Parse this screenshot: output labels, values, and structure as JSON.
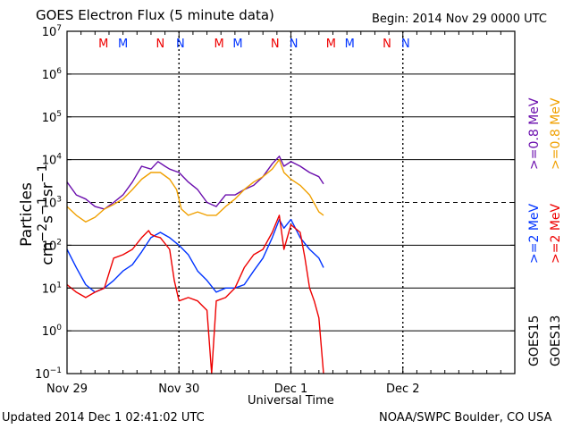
{
  "title": "GOES Electron Flux (5 minute data)",
  "begin_label": "Begin: 2014 Nov 29 0000 UTC",
  "updated_label": "Updated 2014 Dec  1 02:41:02 UTC",
  "credit_label": "NOAA/SWPC Boulder, CO USA",
  "colors": {
    "goes15_high": "#6a0dad",
    "goes13_high": "#f0a000",
    "goes15_low": "#0033ff",
    "goes13_low": "#ee0000"
  },
  "chart_data": {
    "type": "line",
    "title": "GOES Electron Flux (5 minute data)",
    "xlabel": "Universal Time",
    "ylabel": "Particles cm^-2 s^-1 sr^-1",
    "y_scale": "log",
    "ylim": [
      0.1,
      10000000
    ],
    "xlim_hours": [
      0,
      96
    ],
    "x_ticks": [
      {
        "hour": 0,
        "label": "Nov 29"
      },
      {
        "hour": 24,
        "label": "Nov 30"
      },
      {
        "hour": 48,
        "label": "Dec 1"
      },
      {
        "hour": 72,
        "label": "Dec 2"
      }
    ],
    "y_ticks": [
      {
        "exp": -1,
        "label": "10^-1"
      },
      {
        "exp": 0,
        "label": "10^0"
      },
      {
        "exp": 1,
        "label": "10^1"
      },
      {
        "exp": 2,
        "label": "10^2"
      },
      {
        "exp": 3,
        "label": "10^3"
      },
      {
        "exp": 4,
        "label": "10^4"
      },
      {
        "exp": 5,
        "label": "10^5"
      },
      {
        "exp": 6,
        "label": "10^6"
      },
      {
        "exp": 7,
        "label": "10^7"
      }
    ],
    "threshold": {
      "value": 1000,
      "style": "dashed"
    },
    "legend": [
      {
        "text": ">=0.8 MeV",
        "group": 0,
        "series": "GOES15 >=0.8 MeV"
      },
      {
        "text": ">=0.8 MeV",
        "group": 1,
        "series": "GOES13 >=0.8 MeV"
      },
      {
        "text": ">=2 MeV",
        "group": 0,
        "series": "GOES15 >=2 MeV"
      },
      {
        "text": ">=2 MeV",
        "group": 1,
        "series": "GOES13 >=2 MeV"
      },
      {
        "text": "GOES15",
        "group": 0
      },
      {
        "text": "GOES13",
        "group": 1
      }
    ],
    "markers": [
      {
        "hour": 7.8,
        "label": "M",
        "color": "#ee0000"
      },
      {
        "hour": 12.0,
        "label": "M",
        "color": "#0033ff"
      },
      {
        "hour": 20.0,
        "label": "N",
        "color": "#ee0000"
      },
      {
        "hour": 24.3,
        "label": "N",
        "color": "#0033ff"
      },
      {
        "hour": 32.6,
        "label": "M",
        "color": "#ee0000"
      },
      {
        "hour": 36.6,
        "label": "M",
        "color": "#0033ff"
      },
      {
        "hour": 44.6,
        "label": "N",
        "color": "#ee0000"
      },
      {
        "hour": 48.6,
        "label": "N",
        "color": "#0033ff"
      },
      {
        "hour": 56.6,
        "label": "M",
        "color": "#ee0000"
      },
      {
        "hour": 60.6,
        "label": "M",
        "color": "#0033ff"
      },
      {
        "hour": 68.6,
        "label": "N",
        "color": "#ee0000"
      },
      {
        "hour": 72.6,
        "label": "N",
        "color": "#0033ff"
      }
    ],
    "series": [
      {
        "name": "GOES15 >=0.8 MeV",
        "color": "#6a0dad",
        "x": [
          0,
          2,
          4,
          6,
          8,
          10,
          12,
          14,
          16,
          18,
          19.5,
          21,
          22,
          24,
          26,
          28,
          30,
          32,
          34,
          36,
          38,
          40,
          42,
          44,
          45.5,
          46.5,
          48,
          50,
          52,
          54,
          55
        ],
        "y": [
          3000,
          1500,
          1200,
          800,
          700,
          1000,
          1500,
          3000,
          7000,
          6000,
          9000,
          7000,
          6000,
          5000,
          3000,
          2000,
          1000,
          800,
          1500,
          1500,
          2000,
          2500,
          4000,
          8000,
          12000,
          7000,
          9000,
          7000,
          5000,
          4000,
          2700
        ]
      },
      {
        "name": "GOES13 >=0.8 MeV",
        "color": "#f0a000",
        "x": [
          0,
          2,
          4,
          6,
          8,
          10,
          12,
          14,
          16,
          18,
          20,
          22,
          23.5,
          24.5,
          26,
          28,
          30,
          32,
          34,
          36,
          38,
          40,
          42,
          44,
          45.5,
          46.5,
          48,
          50,
          52,
          54,
          55
        ],
        "y": [
          800,
          500,
          350,
          450,
          700,
          900,
          1200,
          2000,
          3500,
          5000,
          5000,
          3500,
          2000,
          700,
          500,
          600,
          500,
          500,
          800,
          1200,
          2000,
          3000,
          4000,
          6000,
          10000,
          5000,
          3500,
          2500,
          1500,
          600,
          500
        ]
      },
      {
        "name": "GOES15 >=2 MeV",
        "color": "#0033ff",
        "x": [
          0,
          2,
          4,
          6,
          8,
          10,
          12,
          14,
          16,
          18,
          20,
          22,
          24,
          26,
          28,
          30,
          32,
          34,
          36,
          38,
          40,
          42,
          44,
          45.5,
          46.5,
          48,
          50,
          52,
          54,
          55
        ],
        "y": [
          80,
          30,
          12,
          8,
          10,
          15,
          25,
          35,
          70,
          150,
          200,
          150,
          100,
          60,
          25,
          15,
          8,
          10,
          10,
          12,
          25,
          50,
          150,
          400,
          250,
          400,
          150,
          80,
          50,
          30
        ]
      },
      {
        "name": "GOES13 >=2 MeV",
        "color": "#ee0000",
        "x": [
          0,
          2,
          4,
          6,
          8,
          10,
          12,
          14,
          16,
          17.5,
          18,
          19,
          20,
          22,
          23,
          24,
          26,
          28,
          30,
          31,
          32,
          34,
          36,
          38,
          40,
          42,
          44,
          45.5,
          46.5,
          48,
          50,
          51,
          52,
          53,
          54,
          55
        ],
        "y": [
          12,
          8,
          6,
          8,
          10,
          50,
          60,
          80,
          150,
          220,
          180,
          160,
          150,
          80,
          15,
          5,
          6,
          5,
          3,
          0.1,
          5,
          6,
          10,
          30,
          60,
          80,
          200,
          500,
          80,
          300,
          200,
          50,
          10,
          5,
          2,
          0.1
        ]
      }
    ]
  }
}
